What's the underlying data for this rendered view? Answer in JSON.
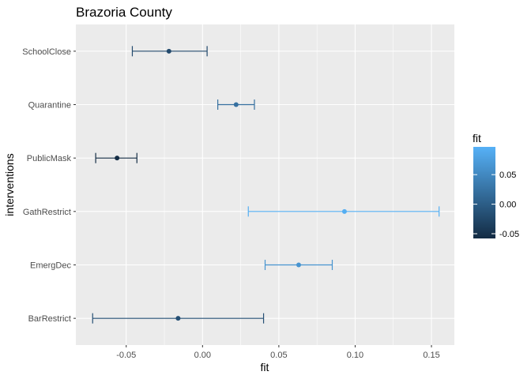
{
  "chart_data": {
    "type": "scatter",
    "title": "Brazoria County",
    "xlabel": "fit",
    "ylabel": "interventions",
    "xlim": [
      -0.083,
      0.165
    ],
    "x_ticks": [
      -0.05,
      0.0,
      0.05,
      0.1,
      0.15
    ],
    "x_tick_labels": [
      "-0.05",
      "0.00",
      "0.05",
      "0.10",
      "0.15"
    ],
    "categories": [
      "BarRestrict",
      "EmergDec",
      "GathRestrict",
      "PublicMask",
      "Quarantine",
      "SchoolClose"
    ],
    "points": [
      {
        "intervention": "BarRestrict",
        "fit": -0.016,
        "lower": -0.072,
        "upper": 0.04
      },
      {
        "intervention": "EmergDec",
        "fit": 0.063,
        "lower": 0.041,
        "upper": 0.085
      },
      {
        "intervention": "GathRestrict",
        "fit": 0.093,
        "lower": 0.03,
        "upper": 0.155
      },
      {
        "intervention": "PublicMask",
        "fit": -0.056,
        "lower": -0.07,
        "upper": -0.043
      },
      {
        "intervention": "Quarantine",
        "fit": 0.022,
        "lower": 0.01,
        "upper": 0.034
      },
      {
        "intervention": "SchoolClose",
        "fit": -0.022,
        "lower": -0.046,
        "upper": 0.003
      }
    ],
    "grid": true,
    "legend": {
      "title": "fit",
      "placement": "right",
      "type": "colorbar",
      "range": [
        -0.058,
        0.097
      ],
      "breaks": [
        -0.05,
        0.0,
        0.05
      ],
      "break_labels": [
        "-0.05",
        "0.00",
        "0.05"
      ],
      "low_color": "#132b43",
      "high_color": "#56b1f7"
    }
  }
}
